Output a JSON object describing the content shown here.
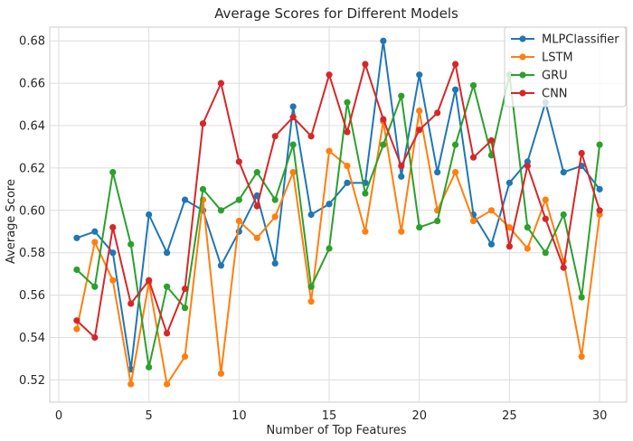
{
  "chart_data": {
    "type": "line",
    "title": "Average Scores for Different Models",
    "xlabel": "Number of Top Features",
    "ylabel": "Average Score",
    "xlim": [
      -0.5,
      31.5
    ],
    "ylim": [
      0.5095,
      0.6865
    ],
    "xticks": [
      0,
      5,
      10,
      15,
      20,
      25,
      30
    ],
    "yticks": [
      0.52,
      0.54,
      0.56,
      0.58,
      0.6,
      0.62,
      0.64,
      0.66,
      0.68
    ],
    "xtick_labels": [
      "0",
      "5",
      "10",
      "15",
      "20",
      "25",
      "30"
    ],
    "ytick_labels": [
      "0.52",
      "0.54",
      "0.56",
      "0.58",
      "0.60",
      "0.62",
      "0.64",
      "0.66",
      "0.68"
    ],
    "grid": true,
    "legend_position": "top-right",
    "x": [
      1,
      2,
      3,
      4,
      5,
      6,
      7,
      8,
      9,
      10,
      11,
      12,
      13,
      14,
      15,
      16,
      17,
      18,
      19,
      20,
      21,
      22,
      23,
      24,
      25,
      26,
      27,
      28,
      29,
      30
    ],
    "series": [
      {
        "name": "MLPClassifier",
        "color": "#1f77b4",
        "values": [
          0.587,
          0.59,
          0.58,
          0.525,
          0.598,
          0.58,
          0.605,
          0.6,
          0.574,
          0.59,
          0.607,
          0.575,
          0.649,
          0.598,
          0.603,
          0.613,
          0.613,
          0.68,
          0.616,
          0.664,
          0.618,
          0.657,
          0.598,
          0.584,
          0.613,
          0.623,
          0.651,
          0.618,
          0.621,
          0.61
        ]
      },
      {
        "name": "LSTM",
        "color": "#ff7f0e",
        "values": [
          0.544,
          0.585,
          0.567,
          0.518,
          0.566,
          0.518,
          0.531,
          0.605,
          0.523,
          0.595,
          0.587,
          0.597,
          0.618,
          0.557,
          0.628,
          0.621,
          0.59,
          0.642,
          0.59,
          0.647,
          0.6,
          0.618,
          0.595,
          0.6,
          0.592,
          0.582,
          0.605,
          0.576,
          0.531,
          0.598
        ]
      },
      {
        "name": "GRU",
        "color": "#2ca02c",
        "values": [
          0.572,
          0.564,
          0.618,
          0.584,
          0.526,
          0.564,
          0.554,
          0.61,
          0.6,
          0.605,
          0.618,
          0.605,
          0.631,
          0.564,
          0.582,
          0.651,
          0.608,
          0.631,
          0.654,
          0.592,
          0.595,
          0.631,
          0.659,
          0.626,
          0.664,
          0.592,
          0.58,
          0.598,
          0.559,
          0.631
        ]
      },
      {
        "name": "CNN",
        "color": "#d62728",
        "values": [
          0.548,
          0.54,
          0.592,
          0.556,
          0.567,
          0.542,
          0.563,
          0.641,
          0.66,
          0.623,
          0.602,
          0.635,
          0.644,
          0.635,
          0.664,
          0.637,
          0.669,
          0.643,
          0.621,
          0.638,
          0.646,
          0.669,
          0.625,
          0.633,
          0.583,
          0.621,
          0.596,
          0.573,
          0.627,
          0.6
        ]
      }
    ]
  }
}
